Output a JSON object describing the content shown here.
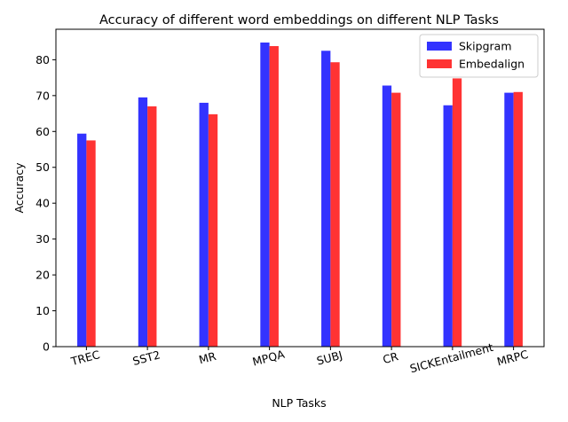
{
  "chart_data": {
    "type": "bar",
    "title": "Accuracy of different word embeddings on different NLP Tasks",
    "xlabel": "NLP Tasks",
    "ylabel": "Accuracy",
    "categories": [
      "TREC",
      "SST2",
      "MR",
      "MPQA",
      "SUBJ",
      "CR",
      "SICKEntailment",
      "MRPC"
    ],
    "series": [
      {
        "name": "Skipgram",
        "color": "#3333ff",
        "values": [
          59.4,
          69.5,
          68.0,
          84.8,
          82.5,
          72.8,
          67.3,
          70.8
        ]
      },
      {
        "name": "Embedalign",
        "color": "#ff3333",
        "values": [
          57.5,
          67.0,
          64.8,
          83.8,
          79.3,
          70.8,
          74.8,
          71.0
        ]
      }
    ],
    "ylim": [
      0,
      88.5
    ],
    "yticks": [
      0,
      10,
      20,
      30,
      40,
      50,
      60,
      70,
      80
    ],
    "xtick_rotation_deg": -15,
    "legend_position": "top-right",
    "grid": false
  }
}
